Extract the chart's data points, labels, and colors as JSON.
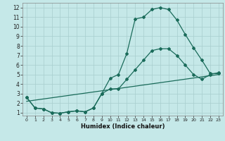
{
  "xlabel": "Humidex (Indice chaleur)",
  "xlim": [
    -0.5,
    23.5
  ],
  "ylim": [
    0.7,
    12.5
  ],
  "xticks": [
    0,
    1,
    2,
    3,
    4,
    5,
    6,
    7,
    8,
    9,
    10,
    11,
    12,
    13,
    14,
    15,
    16,
    17,
    18,
    19,
    20,
    21,
    22,
    23
  ],
  "yticks": [
    1,
    2,
    3,
    4,
    5,
    6,
    7,
    8,
    9,
    10,
    11,
    12
  ],
  "bg_color": "#c5e8e8",
  "grid_color": "#a8cece",
  "line_color": "#1a6b5a",
  "line1_x": [
    0,
    1,
    2,
    3,
    4,
    5,
    6,
    7,
    8,
    9,
    10,
    11,
    12,
    13,
    14,
    15,
    16,
    17,
    18,
    19,
    20,
    21,
    22,
    23
  ],
  "line1_y": [
    2.6,
    1.5,
    1.4,
    1.0,
    0.95,
    1.1,
    1.2,
    1.1,
    1.5,
    3.0,
    4.6,
    5.0,
    7.2,
    10.8,
    11.0,
    11.8,
    12.0,
    11.8,
    10.7,
    9.2,
    7.8,
    6.5,
    5.1,
    5.1
  ],
  "line2_x": [
    0,
    1,
    2,
    3,
    4,
    5,
    6,
    7,
    8,
    9,
    10,
    11,
    12,
    13,
    14,
    15,
    16,
    17,
    18,
    19,
    20,
    21,
    22,
    23
  ],
  "line2_y": [
    2.6,
    1.5,
    1.4,
    1.0,
    0.95,
    1.1,
    1.2,
    1.1,
    1.5,
    3.0,
    3.5,
    3.5,
    4.5,
    5.5,
    6.5,
    7.5,
    7.7,
    7.7,
    7.0,
    6.0,
    5.0,
    4.5,
    5.0,
    5.2
  ],
  "line3_x": [
    0,
    23
  ],
  "line3_y": [
    2.2,
    5.0
  ]
}
